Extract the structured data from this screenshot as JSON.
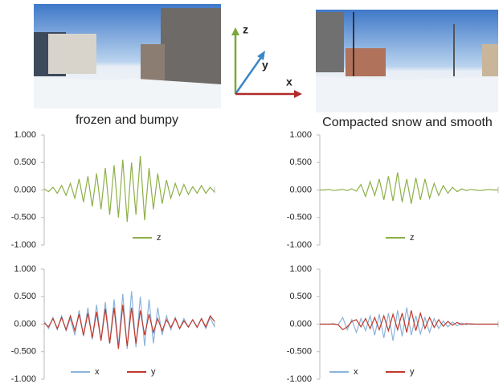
{
  "captions": [
    "frozen and bumpy",
    "Compacted snow and smooth"
  ],
  "axis_labels": [
    "z",
    "y",
    "x"
  ],
  "chart_data": [
    {
      "type": "line",
      "ylim": [
        -1,
        1
      ],
      "legend": "bottom",
      "yticks": [
        {
          "value": 1,
          "label": "1.000"
        },
        {
          "value": 0.5,
          "label": "0.500"
        },
        {
          "value": 0,
          "label": "0.000"
        },
        {
          "value": -0.5,
          "label": "-0.500"
        },
        {
          "value": -1,
          "label": "-1.000"
        }
      ],
      "series": [
        {
          "name": "z",
          "color": "#8db048",
          "values": [
            0.02,
            -0.03,
            0.05,
            -0.06,
            0.08,
            -0.1,
            0.12,
            -0.15,
            0.2,
            -0.22,
            0.25,
            -0.3,
            0.3,
            -0.35,
            0.4,
            -0.45,
            0.45,
            -0.5,
            0.55,
            -0.58,
            0.5,
            -0.45,
            0.62,
            -0.55,
            0.4,
            -0.35,
            0.3,
            -0.25,
            0.18,
            -0.15,
            0.12,
            -0.1,
            0.1,
            -0.08,
            0.06,
            -0.06,
            0.08,
            -0.06,
            0.05,
            -0.04
          ]
        }
      ]
    },
    {
      "type": "line",
      "ylim": [
        -1,
        1
      ],
      "legend": "bottom",
      "yticks": [
        {
          "value": 1,
          "label": "1.000"
        },
        {
          "value": 0.5,
          "label": "0.500"
        },
        {
          "value": 0,
          "label": "0.000"
        },
        {
          "value": -0.5,
          "label": "-0.500"
        },
        {
          "value": -1,
          "label": "-1.000"
        }
      ],
      "series": [
        {
          "name": "z",
          "color": "#8db048",
          "values": [
            0,
            0,
            0.01,
            -0.01,
            0,
            0.01,
            -0.01,
            0.02,
            -0.02,
            0.1,
            -0.12,
            0.15,
            -0.1,
            0.2,
            -0.18,
            0.25,
            -0.2,
            0.32,
            -0.22,
            0.2,
            -0.25,
            0.22,
            -0.18,
            0.2,
            -0.15,
            0.12,
            -0.1,
            0.08,
            -0.06,
            0.05,
            -0.03,
            0.02,
            -0.01,
            0.01,
            0,
            -0.01,
            0,
            0.01,
            0,
            0
          ]
        }
      ]
    },
    {
      "type": "line",
      "ylim": [
        -1,
        1
      ],
      "legend": "bottom",
      "yticks": [
        {
          "value": 1,
          "label": "1.000"
        },
        {
          "value": 0.5,
          "label": "0.500"
        },
        {
          "value": 0,
          "label": "0.000"
        },
        {
          "value": -0.5,
          "label": "-0.500"
        },
        {
          "value": -1,
          "label": "-1.000"
        }
      ],
      "series": [
        {
          "name": "x",
          "color": "#8ab4dc",
          "values": [
            0.05,
            -0.08,
            0.12,
            -0.1,
            0.15,
            -0.12,
            0.1,
            -0.2,
            0.25,
            -0.22,
            0.3,
            -0.28,
            0.35,
            -0.3,
            0.4,
            -0.35,
            0.45,
            -0.4,
            0.55,
            -0.45,
            0.6,
            -0.42,
            0.5,
            -0.4,
            0.45,
            -0.35,
            0.3,
            -0.2,
            0.15,
            -0.1,
            0.12,
            -0.08,
            0.1,
            -0.06,
            0.08,
            -0.05,
            0.1,
            -0.08,
            0.12,
            -0.05
          ]
        },
        {
          "name": "y",
          "color": "#c0392b",
          "values": [
            0.02,
            -0.05,
            0.1,
            -0.08,
            0.12,
            -0.1,
            0.15,
            -0.12,
            0.18,
            -0.2,
            0.2,
            -0.25,
            0.22,
            -0.3,
            0.28,
            -0.35,
            0.3,
            -0.45,
            0.35,
            -0.4,
            0.3,
            -0.35,
            0.25,
            -0.2,
            0.18,
            -0.15,
            0.1,
            -0.12,
            0.08,
            -0.06,
            0.1,
            -0.08,
            0.06,
            -0.05,
            0.08,
            -0.06,
            0.1,
            -0.05,
            0.15,
            0.05
          ]
        }
      ]
    },
    {
      "type": "line",
      "ylim": [
        -1,
        1
      ],
      "legend": "bottom",
      "yticks": [
        {
          "value": 1,
          "label": "1.000"
        },
        {
          "value": 0.5,
          "label": "0.500"
        },
        {
          "value": 0,
          "label": "0.000"
        },
        {
          "value": -0.5,
          "label": "-0.500"
        },
        {
          "value": -1,
          "label": "-1.000"
        }
      ],
      "series": [
        {
          "name": "x",
          "color": "#8ab4dc",
          "values": [
            0,
            0,
            0,
            0.01,
            -0.01,
            0.12,
            -0.1,
            0.08,
            -0.15,
            0.1,
            -0.12,
            0.15,
            -0.2,
            0.18,
            -0.25,
            0.2,
            -0.3,
            0.25,
            -0.22,
            0.3,
            -0.2,
            0.15,
            -0.18,
            0.12,
            -0.15,
            0.1,
            -0.08,
            0.06,
            -0.05,
            0.04,
            -0.03,
            0.02,
            -0.01,
            0.01,
            0,
            0,
            0,
            0,
            0,
            0
          ]
        },
        {
          "name": "y",
          "color": "#c0392b",
          "values": [
            0,
            0,
            0,
            0,
            -0.01,
            -0.1,
            -0.05,
            0.05,
            0.08,
            -0.05,
            0.1,
            -0.08,
            0.12,
            -0.1,
            0.15,
            -0.12,
            0.18,
            -0.1,
            0.2,
            -0.15,
            0.25,
            -0.12,
            0.2,
            -0.08,
            0.12,
            -0.06,
            0.08,
            -0.04,
            0.05,
            -0.02,
            0.03,
            -0.01,
            0.01,
            0,
            0,
            0,
            0,
            0,
            0,
            0
          ]
        }
      ]
    }
  ]
}
